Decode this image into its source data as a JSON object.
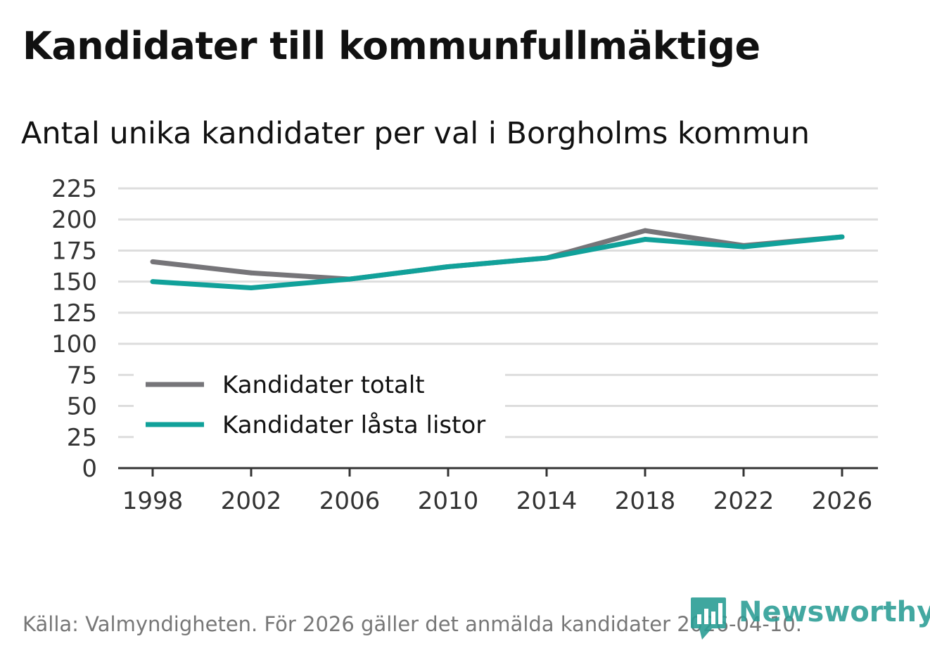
{
  "title": "Kandidater till kommunfullmäktige",
  "subtitle": "Antal unika kandidater per val i Borgholms kommun",
  "source": "Källa: Valmyndigheten. För 2026 gäller det anmälda kandidater 2026-04-10.",
  "brand": "Newsworthy",
  "colors": {
    "totalt": "#767579",
    "lasta": "#11a19a",
    "grid": "#dddddd",
    "axis": "#333333"
  },
  "chart_data": {
    "type": "line",
    "title": "Kandidater till kommunfullmäktige",
    "subtitle": "Antal unika kandidater per val i Borgholms kommun",
    "xlabel": "",
    "ylabel": "",
    "x": [
      "1998",
      "2002",
      "2006",
      "2010",
      "2014",
      "2018",
      "2022",
      "2026"
    ],
    "ylim": [
      0,
      225
    ],
    "yticks": [
      0,
      25,
      50,
      75,
      100,
      125,
      150,
      175,
      200,
      225
    ],
    "grid": true,
    "legend": "bottom-left",
    "series": [
      {
        "name": "Kandidater totalt",
        "color": "#767579",
        "values": [
          166,
          157,
          152,
          162,
          169,
          191,
          179,
          186
        ]
      },
      {
        "name": "Kandidater låsta listor",
        "color": "#11a19a",
        "values": [
          150,
          145,
          152,
          162,
          169,
          184,
          178,
          186
        ]
      }
    ]
  }
}
